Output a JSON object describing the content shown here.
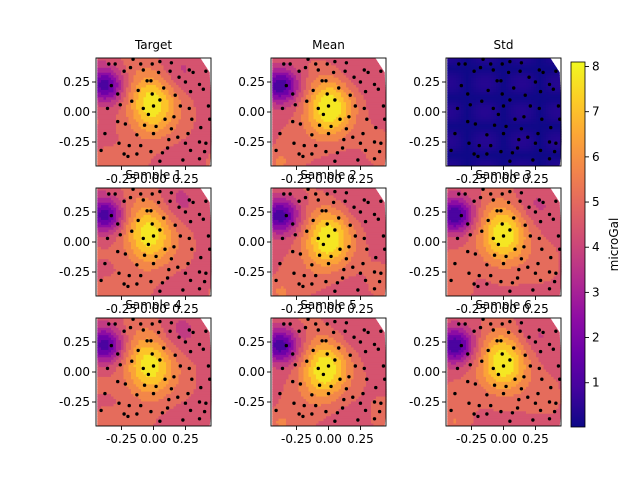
{
  "chart_data": {
    "type": "contour",
    "colormap": "plasma",
    "colorbar": {
      "label": "microGal",
      "range": [
        0.02,
        8.1
      ],
      "ticks": [
        1,
        2,
        3,
        4,
        5,
        6,
        7,
        8
      ],
      "tick_labels": [
        "1",
        "2",
        "3",
        "4",
        "5",
        "6",
        "7",
        "8"
      ],
      "placement": "right"
    },
    "axes": {
      "xlim": [
        -0.45,
        0.45
      ],
      "ylim": [
        -0.45,
        0.45
      ],
      "x_ticks": [
        -0.25,
        0.0,
        0.25
      ],
      "x_tick_labels": [
        "-0.25",
        "0.00",
        "0.25"
      ],
      "y_ticks": [
        0.25,
        0.0,
        -0.25
      ],
      "y_tick_labels": [
        "0.25",
        "0.00",
        "-0.25"
      ],
      "x_tick_labels_visible_rows": [
        "row1",
        "row2",
        "row3"
      ],
      "y_tick_labels_visible_col": "all"
    },
    "panels": [
      {
        "title": "Target",
        "kind": "field",
        "variant": 0
      },
      {
        "title": "Mean",
        "kind": "field",
        "variant": 1
      },
      {
        "title": "Std",
        "kind": "std",
        "variant": 2
      },
      {
        "title": "Sample 1",
        "kind": "field",
        "variant": 3
      },
      {
        "title": "Sample 2",
        "kind": "field",
        "variant": 4
      },
      {
        "title": "Sample 3",
        "kind": "field",
        "variant": 5
      },
      {
        "title": "Sample 4",
        "kind": "field",
        "variant": 6
      },
      {
        "title": "Sample 5",
        "kind": "field",
        "variant": 7
      },
      {
        "title": "Sample 6",
        "kind": "field",
        "variant": 8
      }
    ],
    "field": {
      "low_center": [
        -0.38,
        0.22
      ],
      "high_center": [
        -0.02,
        0.04
      ],
      "min_value": 0.5,
      "max_value": 8.0,
      "std_max": 0.6
    },
    "stations": [
      [
        -0.08,
        0.35
      ],
      [
        0.05,
        0.1
      ],
      [
        0.29,
        0.17
      ],
      [
        -0.28,
        0.15
      ],
      [
        0.41,
        0.34
      ],
      [
        -0.2,
        -0.37
      ],
      [
        0.29,
        -0.32
      ],
      [
        0.41,
        -0.26
      ],
      [
        0.17,
        0.14
      ],
      [
        -0.13,
        -0.35
      ],
      [
        0.0,
        0.05
      ],
      [
        0.31,
        0.33
      ],
      [
        -0.16,
        0.44
      ],
      [
        0.02,
        -0.12
      ],
      [
        -0.38,
        -0.18
      ],
      [
        0.16,
        -0.04
      ],
      [
        -0.23,
        0.34
      ],
      [
        -0.17,
        0.09
      ],
      [
        0.0,
        -0.18
      ],
      [
        0.11,
        -0.3
      ],
      [
        -0.35,
        0.4
      ],
      [
        0.37,
        -0.13
      ],
      [
        0.05,
        0.42
      ],
      [
        -0.1,
        0.4
      ],
      [
        0.23,
        -0.4
      ],
      [
        0.28,
        0.03
      ],
      [
        0.43,
        0.05
      ],
      [
        -0.02,
        -0.33
      ],
      [
        0.14,
        0.41
      ],
      [
        -0.28,
        -0.08
      ],
      [
        -0.02,
        0.26
      ],
      [
        -0.3,
        0.4
      ],
      [
        0.04,
        0.33
      ],
      [
        -0.27,
        -0.26
      ],
      [
        0.3,
        -0.06
      ],
      [
        0.39,
        0.19
      ],
      [
        -0.13,
        -0.19
      ],
      [
        0.36,
        -0.39
      ],
      [
        -0.26,
        0.06
      ],
      [
        -0.01,
        0.15
      ],
      [
        0.12,
        -0.23
      ],
      [
        0.25,
        0.25
      ],
      [
        -0.08,
        0.03
      ],
      [
        -0.19,
        -0.28
      ],
      [
        0.19,
        -0.21
      ],
      [
        0.36,
        -0.25
      ],
      [
        0.27,
        -0.18
      ],
      [
        -0.1,
        -0.28
      ],
      [
        -0.23,
        -0.35
      ],
      [
        0.21,
        0.05
      ],
      [
        -0.12,
        0.18
      ],
      [
        -0.05,
        0.26
      ],
      [
        0.28,
        0.35
      ],
      [
        0.05,
        -0.41
      ],
      [
        -0.07,
        -0.11
      ],
      [
        0.13,
        0.34
      ],
      [
        0.44,
        -0.06
      ],
      [
        0.4,
        -0.33
      ],
      [
        -0.33,
        0.22
      ],
      [
        -0.18,
        0.37
      ],
      [
        0.07,
        -0.34
      ],
      [
        -0.22,
        -0.1
      ],
      [
        0.36,
        0.23
      ],
      [
        0.14,
        -0.14
      ],
      [
        0.08,
        0.2
      ],
      [
        -0.41,
        -0.32
      ],
      [
        0.2,
        0.29
      ],
      [
        -0.36,
        0.03
      ],
      [
        -0.01,
        0.4
      ],
      [
        0.09,
        -0.06
      ],
      [
        0.25,
        -0.26
      ],
      [
        -0.04,
        -0.02
      ]
    ]
  }
}
